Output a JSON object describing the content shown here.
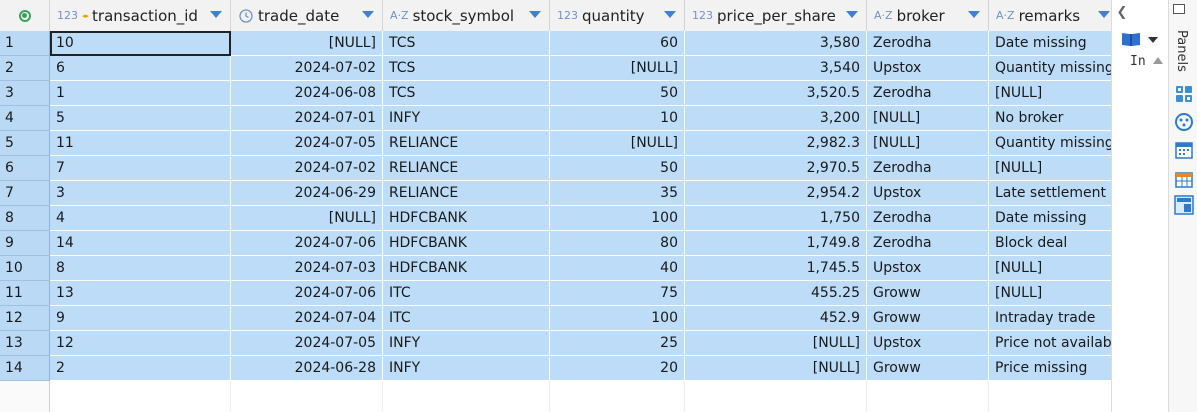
{
  "columns": [
    {
      "name": "transaction_id",
      "type": "123",
      "key": true
    },
    {
      "name": "trade_date",
      "type": "clock",
      "key": false
    },
    {
      "name": "stock_symbol",
      "type": "A-Z",
      "key": false
    },
    {
      "name": "quantity",
      "type": "123",
      "key": false
    },
    {
      "name": "price_per_share",
      "type": "123",
      "key": false
    },
    {
      "name": "broker",
      "type": "A-Z",
      "key": false
    },
    {
      "name": "remarks",
      "type": "A-Z",
      "key": false
    }
  ],
  "rows": [
    {
      "n": "1",
      "cells": [
        "10",
        "[NULL]",
        "TCS",
        "60",
        "3,580",
        "Zerodha",
        "Date missing"
      ]
    },
    {
      "n": "2",
      "cells": [
        "6",
        "2024-07-02",
        "TCS",
        "[NULL]",
        "3,540",
        "Upstox",
        "Quantity missing"
      ]
    },
    {
      "n": "3",
      "cells": [
        "1",
        "2024-06-08",
        "TCS",
        "50",
        "3,520.5",
        "Zerodha",
        "[NULL]"
      ]
    },
    {
      "n": "4",
      "cells": [
        "5",
        "2024-07-01",
        "INFY",
        "10",
        "3,200",
        "[NULL]",
        "No broker"
      ]
    },
    {
      "n": "5",
      "cells": [
        "11",
        "2024-07-05",
        "RELIANCE",
        "[NULL]",
        "2,982.3",
        "[NULL]",
        "Quantity missing"
      ]
    },
    {
      "n": "6",
      "cells": [
        "7",
        "2024-07-02",
        "RELIANCE",
        "50",
        "2,970.5",
        "Zerodha",
        "[NULL]"
      ]
    },
    {
      "n": "7",
      "cells": [
        "3",
        "2024-06-29",
        "RELIANCE",
        "35",
        "2,954.2",
        "Upstox",
        "Late settlement"
      ]
    },
    {
      "n": "8",
      "cells": [
        "4",
        "[NULL]",
        "HDFCBANK",
        "100",
        "1,750",
        "Zerodha",
        "Date missing"
      ]
    },
    {
      "n": "9",
      "cells": [
        "14",
        "2024-07-06",
        "HDFCBANK",
        "80",
        "1,749.8",
        "Zerodha",
        "Block deal"
      ]
    },
    {
      "n": "10",
      "cells": [
        "8",
        "2024-07-03",
        "HDFCBANK",
        "40",
        "1,745.5",
        "Upstox",
        "[NULL]"
      ]
    },
    {
      "n": "11",
      "cells": [
        "13",
        "2024-07-06",
        "ITC",
        "75",
        "455.25",
        "Groww",
        "[NULL]"
      ]
    },
    {
      "n": "12",
      "cells": [
        "9",
        "2024-07-04",
        "ITC",
        "100",
        "452.9",
        "Groww",
        "Intraday trade"
      ]
    },
    {
      "n": "13",
      "cells": [
        "12",
        "2024-07-05",
        "INFY",
        "25",
        "[NULL]",
        "Upstox",
        "Price not available"
      ]
    },
    {
      "n": "14",
      "cells": [
        "2",
        "2024-06-28",
        "INFY",
        "20",
        "[NULL]",
        "Groww",
        "Price missing"
      ]
    }
  ],
  "side_panel": {
    "panels_label": "Panels",
    "in_text": "In"
  },
  "colors": {
    "selection": "#bcdcf7",
    "rownum": "#b9d9f5",
    "accent": "#3f7fd6",
    "green": "#39a35a"
  }
}
